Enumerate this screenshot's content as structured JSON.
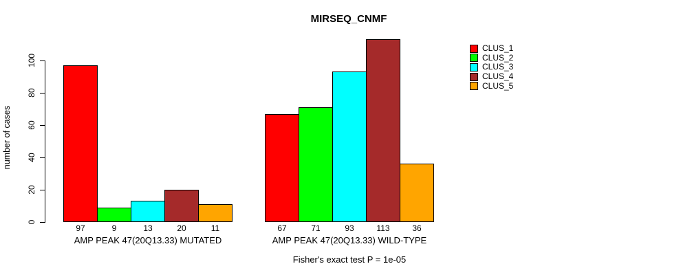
{
  "chart_data": {
    "type": "bar",
    "title": "MIRSEQ_CNMF",
    "ylabel": "number of cases",
    "xlabel": "",
    "yticks": [
      0,
      20,
      40,
      60,
      80,
      100
    ],
    "yaxis_range": [
      0,
      100
    ],
    "grid": false,
    "legend_position": "right",
    "bar_border_color": "#000000",
    "legend": [
      {
        "label": "CLUS_1",
        "color": "#FF0000"
      },
      {
        "label": "CLUS_2",
        "color": "#00FF00"
      },
      {
        "label": "CLUS_3",
        "color": "#00FFFF"
      },
      {
        "label": "CLUS_4",
        "color": "#A52A2A"
      },
      {
        "label": "CLUS_5",
        "color": "#FFA500"
      }
    ],
    "groups": [
      {
        "label": "AMP PEAK 47(20Q13.33) MUTATED",
        "values": [
          97,
          9,
          13,
          20,
          11
        ]
      },
      {
        "label": "AMP PEAK 47(20Q13.33) WILD-TYPE",
        "values": [
          67,
          71,
          93,
          113,
          36
        ]
      }
    ],
    "footnote": "Fisher's exact test P = 1e-05"
  }
}
